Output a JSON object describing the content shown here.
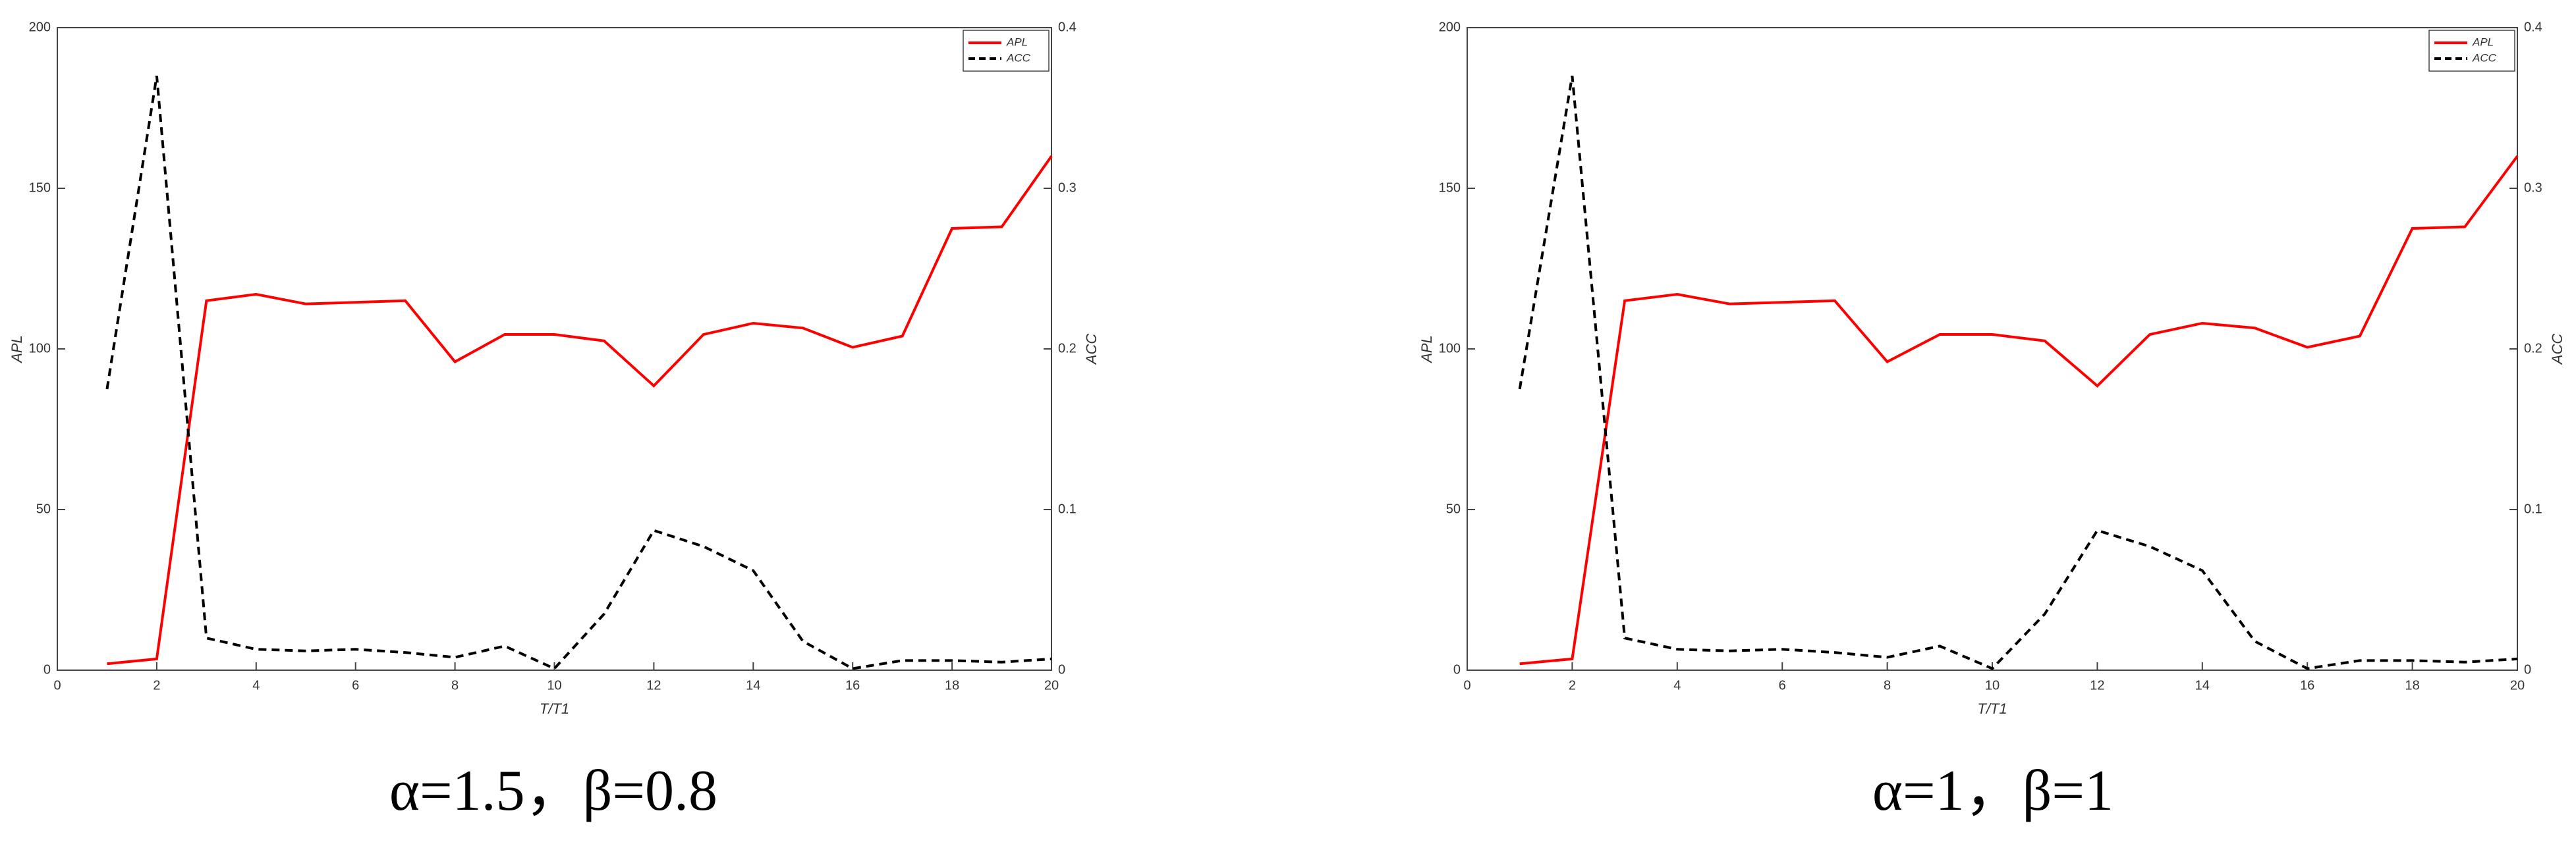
{
  "chart_data": [
    {
      "type": "line",
      "xlabel": "T/T1",
      "ylabel": "APL",
      "y2label": "ACC",
      "caption": "α=1.5，β=0.8",
      "x": [
        1,
        2,
        3,
        4,
        5,
        6,
        7,
        8,
        9,
        10,
        11,
        12,
        13,
        14,
        15,
        16,
        17,
        18,
        19,
        20
      ],
      "series": [
        {
          "name": "APL",
          "color": "#ff0000",
          "linestyle": "solid",
          "values": [
            2,
            3.5,
            115,
            117,
            114,
            114.5,
            115,
            96,
            104.5,
            104.5,
            102.5,
            88.5,
            104.5,
            108,
            106.5,
            100.5,
            104,
            137.5,
            138,
            160
          ]
        },
        {
          "name": "ACC",
          "color": "#000000",
          "linestyle": "dashed",
          "axis": "y2",
          "values": [
            0.175,
            0.37,
            0.02,
            0.013,
            0.012,
            0.013,
            0.011,
            0.008,
            0.015,
            0.001,
            0.035,
            0.087,
            0.077,
            0.062,
            0.018,
            0.001,
            0.006,
            0.006,
            0.005,
            0.007
          ]
        }
      ],
      "xlim": [
        0,
        20
      ],
      "xticks": [
        0,
        2,
        4,
        6,
        8,
        10,
        12,
        14,
        16,
        18,
        20
      ],
      "ylim": [
        0,
        200
      ],
      "yticks": [
        0,
        50,
        100,
        150,
        200
      ],
      "y2lim": [
        0,
        0.4
      ],
      "y2ticks": [
        0,
        0.1,
        0.2,
        0.3,
        0.4
      ],
      "legend": "upper right"
    },
    {
      "type": "line",
      "xlabel": "T/T1",
      "ylabel": "APL",
      "y2label": "ACC",
      "caption": "α=1，β=1",
      "x": [
        1,
        2,
        3,
        4,
        5,
        6,
        7,
        8,
        9,
        10,
        11,
        12,
        13,
        14,
        15,
        16,
        17,
        18,
        19,
        20
      ],
      "series": [
        {
          "name": "APL",
          "color": "#ff0000",
          "linestyle": "solid",
          "values": [
            2,
            3.5,
            115,
            117,
            114,
            114.5,
            115,
            96,
            104.5,
            104.5,
            102.5,
            88.5,
            104.5,
            108,
            106.5,
            100.5,
            104,
            137.5,
            138,
            160
          ]
        },
        {
          "name": "ACC",
          "color": "#000000",
          "linestyle": "dashed",
          "axis": "y2",
          "values": [
            0.175,
            0.37,
            0.02,
            0.013,
            0.012,
            0.013,
            0.011,
            0.008,
            0.015,
            0.001,
            0.035,
            0.087,
            0.077,
            0.062,
            0.018,
            0.001,
            0.006,
            0.006,
            0.005,
            0.007
          ]
        }
      ],
      "xlim": [
        0,
        20
      ],
      "xticks": [
        0,
        2,
        4,
        6,
        8,
        10,
        12,
        14,
        16,
        18,
        20
      ],
      "ylim": [
        0,
        200
      ],
      "yticks": [
        0,
        50,
        100,
        150,
        200
      ],
      "y2lim": [
        0,
        0.4
      ],
      "y2ticks": [
        0,
        0.1,
        0.2,
        0.3,
        0.4
      ],
      "legend": "upper right"
    }
  ]
}
